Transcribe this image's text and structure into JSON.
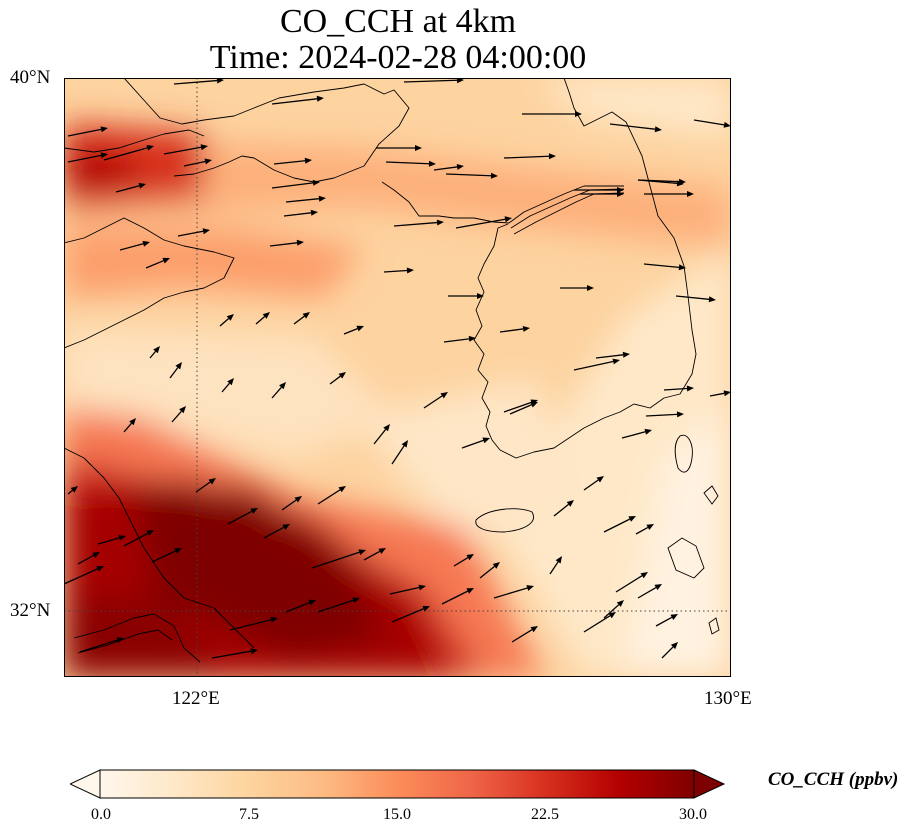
{
  "title_line1": "CO_CCH at 4km",
  "title_line2": "Time: 2024-02-28 04:00:00",
  "map": {
    "lon_range": [
      120.0,
      130.0
    ],
    "lat_range": [
      31.0,
      40.0
    ],
    "lat_ticks": [
      {
        "value": 40,
        "label": "40°N"
      },
      {
        "value": 32,
        "label": "32°N"
      }
    ],
    "lon_ticks": [
      {
        "value": 122,
        "label": "122°E"
      },
      {
        "value": 130,
        "label": "130°E"
      }
    ],
    "gridlines": "dotted",
    "features": [
      "coastline",
      "national-border",
      "wind-vectors"
    ]
  },
  "colorbar": {
    "label": "CO_CCH (ppbv)",
    "min": 0.0,
    "max": 30.0,
    "extend": "both",
    "ticks": [
      "0.0",
      "7.5",
      "15.0",
      "22.5",
      "30.0"
    ],
    "colormap": "OrRd",
    "colors": [
      "#fff7ec",
      "#fee8c8",
      "#fdd49e",
      "#fdbb84",
      "#fc8d59",
      "#ef6548",
      "#d7301f",
      "#b30000",
      "#7f0000"
    ]
  }
}
